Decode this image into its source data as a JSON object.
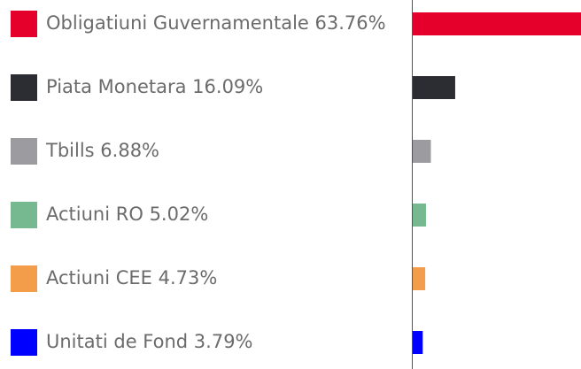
{
  "chart_data": {
    "type": "bar",
    "orientation": "horizontal",
    "categories": [
      "Obligatiuni Guvernamentale",
      "Piata Monetara",
      "Tbills",
      "Actiuni RO",
      "Actiuni CEE",
      "Unitati de Fond"
    ],
    "values": [
      63.76,
      16.09,
      6.88,
      5.02,
      4.73,
      3.79
    ],
    "value_labels": [
      "63.76%",
      "16.09%",
      "6.88%",
      "5.02%",
      "4.73%",
      "3.79%"
    ],
    "colors": [
      "#e4002b",
      "#2b2d33",
      "#9c9ca0",
      "#76b88f",
      "#f39c4a",
      "#0000ff"
    ]
  }
}
